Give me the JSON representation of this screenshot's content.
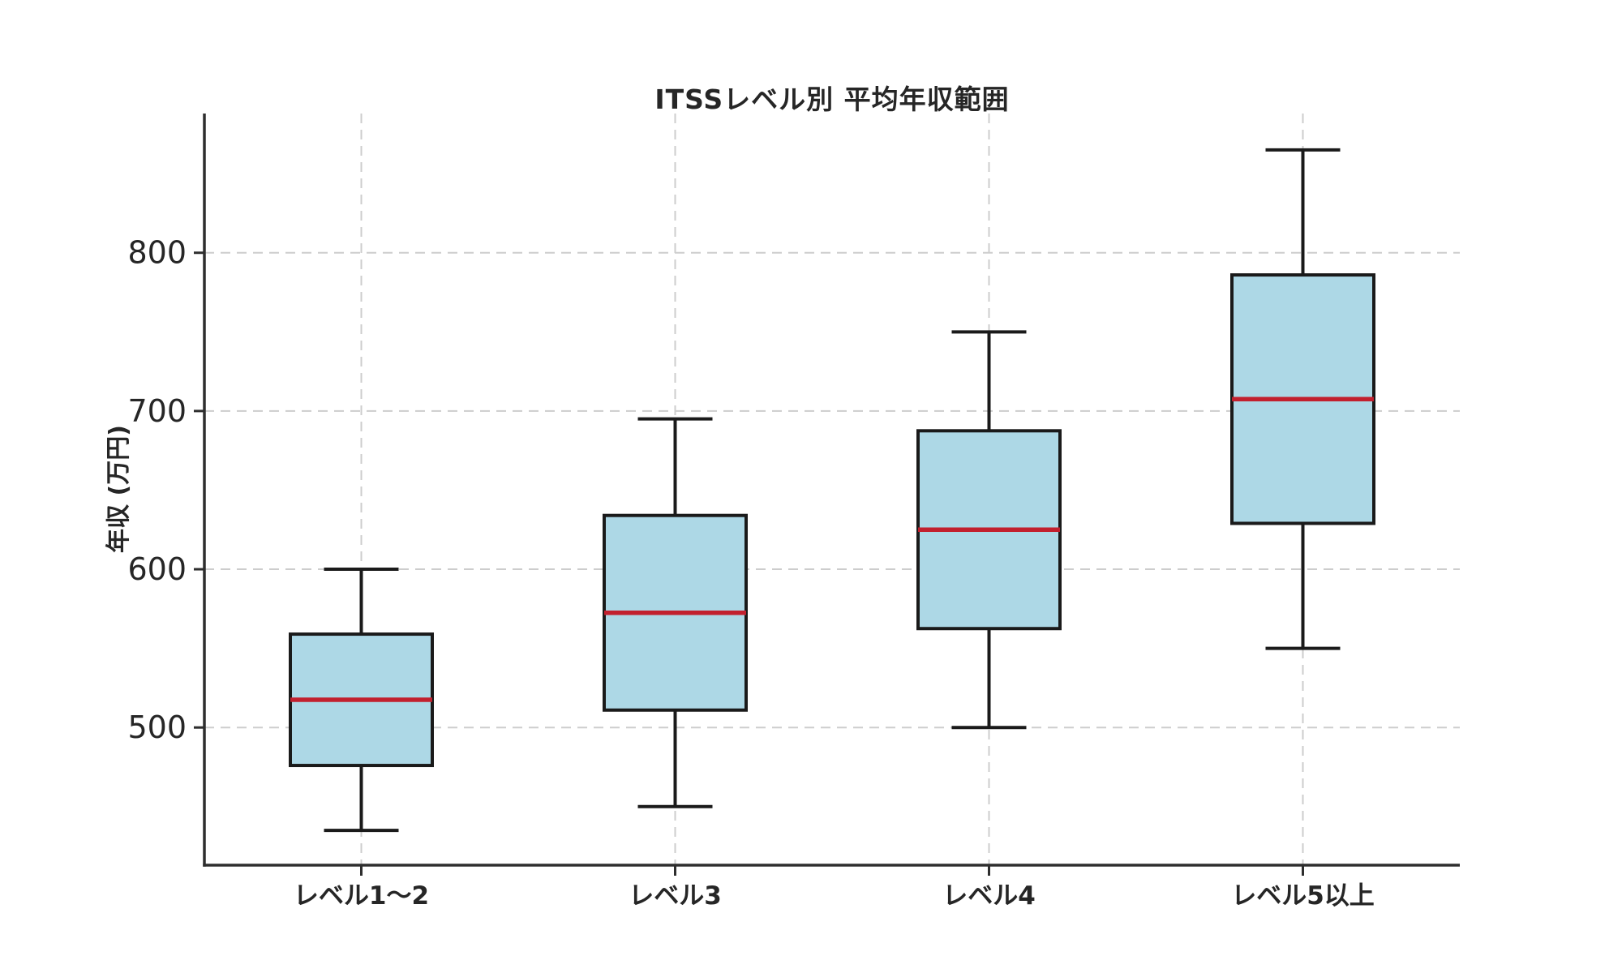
{
  "chart_data": {
    "type": "box",
    "title": "ITSSレベル別 平均年収範囲",
    "ylabel": "年収 (万円)",
    "xlabel": "",
    "categories": [
      "レベル1〜2",
      "レベル3",
      "レベル4",
      "レベル5以上"
    ],
    "series": [
      {
        "category": "レベル1〜2",
        "min": 435,
        "q1": 476,
        "median": 517.5,
        "q3": 559,
        "max": 600
      },
      {
        "category": "レベル3",
        "min": 450,
        "q1": 511,
        "median": 572.5,
        "q3": 634,
        "max": 695
      },
      {
        "category": "レベル4",
        "min": 500,
        "q1": 562.5,
        "median": 625,
        "q3": 687.5,
        "max": 750
      },
      {
        "category": "レベル5以上",
        "min": 550,
        "q1": 629,
        "median": 707.5,
        "q3": 786,
        "max": 865
      }
    ],
    "yticks": [
      500,
      600,
      700,
      800
    ],
    "ylim": [
      413,
      888
    ],
    "grid": true,
    "legend": "none",
    "colors": {
      "box_fill": "#ADD8E6",
      "box_edge": "#1a1a1a",
      "median": "#C2202E",
      "whisker": "#1a1a1a",
      "grid": "#cdcdcd",
      "axis": "#2e2e2e",
      "text": "#262626",
      "background": "#ffffff"
    }
  }
}
